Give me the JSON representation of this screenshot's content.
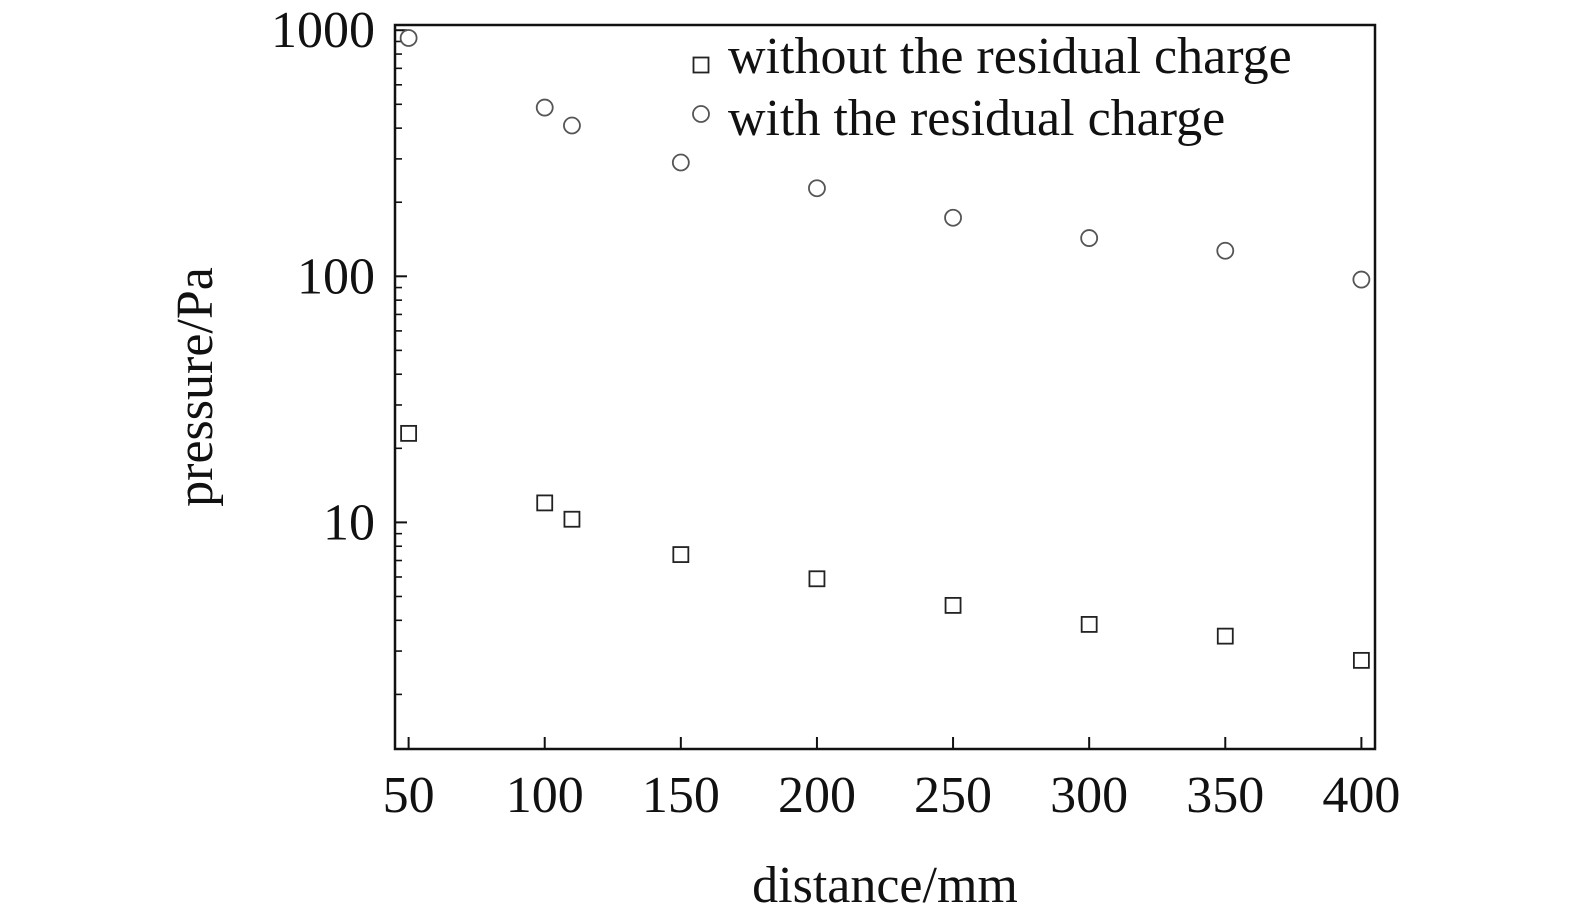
{
  "chart_data": {
    "type": "scatter",
    "xlabel": "distance/mm",
    "ylabel": "pressure/Pa",
    "xlim": [
      45,
      405
    ],
    "ylim": [
      1.2,
      1050
    ],
    "y_scale": "log",
    "x_ticks": [
      50,
      100,
      150,
      200,
      250,
      300,
      350,
      400
    ],
    "x_tick_labels": [
      "50",
      "100",
      "150",
      "200",
      "250",
      "300",
      "350",
      "400"
    ],
    "y_ticks": [
      10,
      100,
      1000
    ],
    "y_tick_labels": [
      "10",
      "100",
      "1000"
    ],
    "y_minor_ticks": [
      2,
      3,
      4,
      5,
      6,
      7,
      8,
      9,
      20,
      30,
      40,
      50,
      60,
      70,
      80,
      90,
      200,
      300,
      400,
      500,
      600,
      700,
      800,
      900
    ],
    "grid": false,
    "legend_position": "top-right",
    "series": [
      {
        "name": "without the residual charge",
        "marker": "square",
        "color": "#222222",
        "x": [
          50,
          100,
          110,
          150,
          200,
          250,
          300,
          350,
          400
        ],
        "y": [
          23,
          12,
          10.3,
          7.4,
          5.9,
          4.6,
          3.85,
          3.45,
          2.75
        ]
      },
      {
        "name": "with the residual charge",
        "marker": "circle",
        "color": "#555555",
        "x": [
          50,
          100,
          110,
          150,
          200,
          250,
          300,
          350,
          400
        ],
        "y": [
          930,
          485,
          410,
          290,
          228,
          173,
          143,
          127,
          97
        ]
      }
    ]
  }
}
